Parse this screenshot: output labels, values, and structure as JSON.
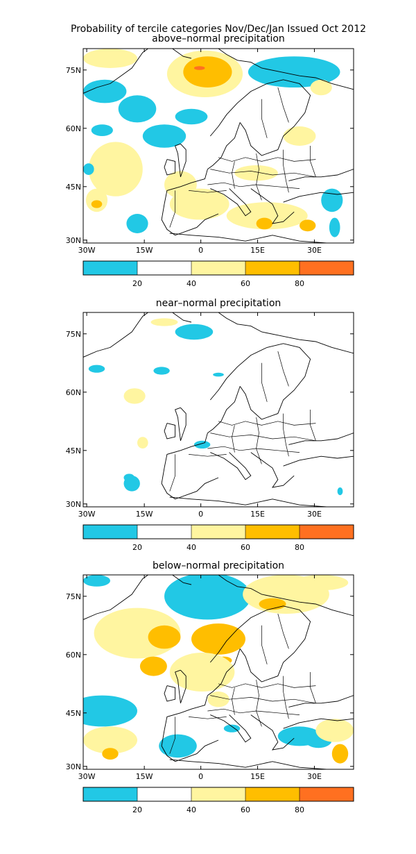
{
  "figure": {
    "title": "Probability of tercile categories Nov/Dec/Jan Issued Oct 2012"
  },
  "panels": [
    {
      "id": "above",
      "title": "above–normal precipitation"
    },
    {
      "id": "near",
      "title": "near–normal precipitation"
    },
    {
      "id": "below",
      "title": "below–normal precipitation"
    }
  ],
  "axes": {
    "lat_labels": [
      "75N",
      "60N",
      "45N",
      "30N"
    ],
    "lon_labels": [
      "30W",
      "15W",
      "0",
      "15E",
      "30E"
    ]
  },
  "colorbar": {
    "labels": [
      "20",
      "40",
      "60",
      "80"
    ],
    "colors": [
      "#22c8e5",
      "#ffffff",
      "#fff5a0",
      "#ffbe00",
      "#ff7020"
    ]
  }
}
